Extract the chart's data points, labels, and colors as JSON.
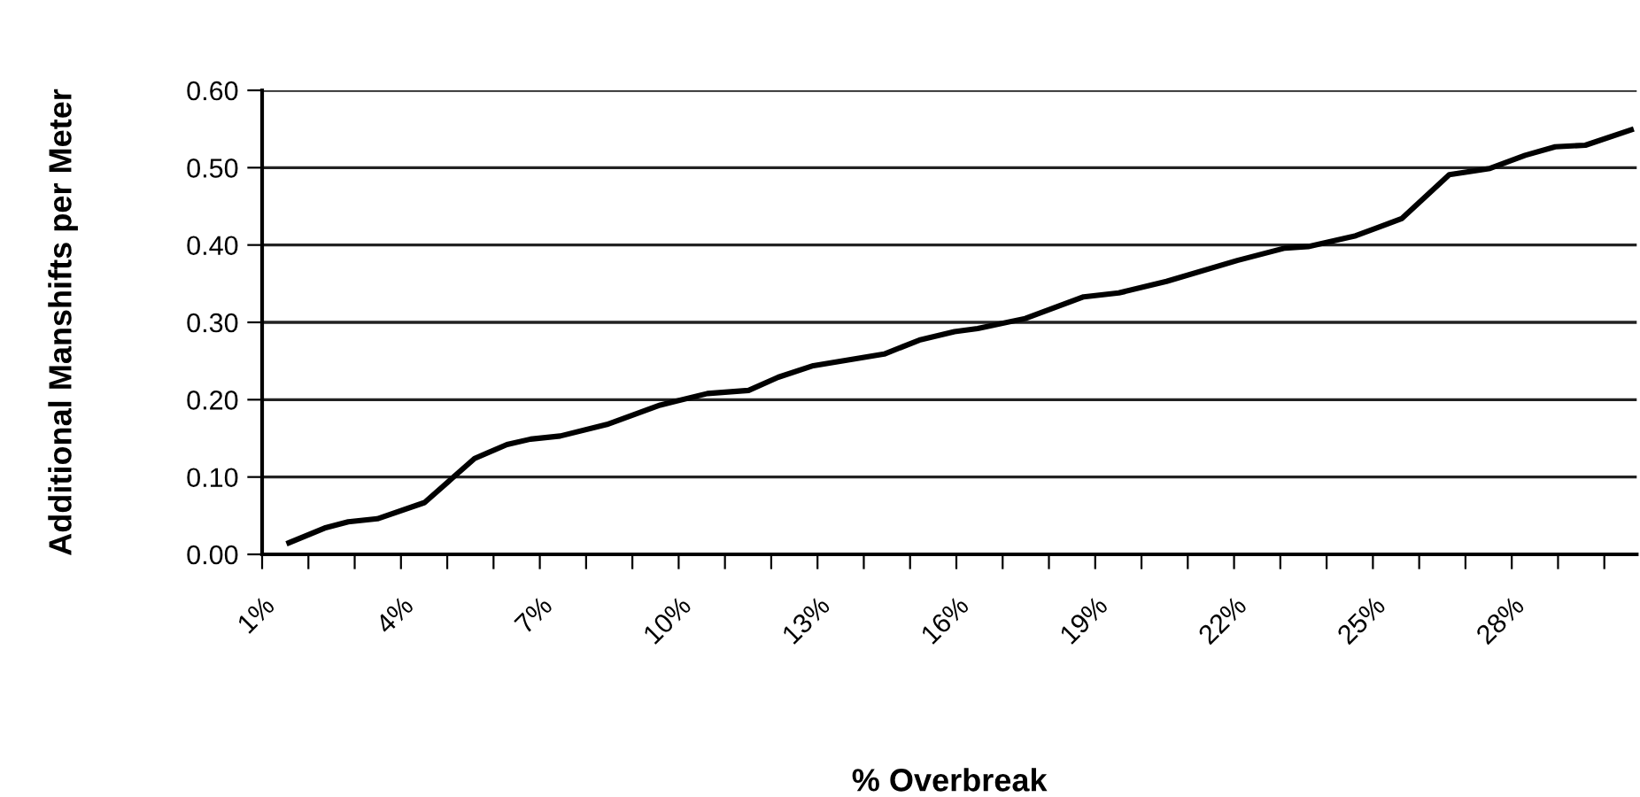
{
  "chart_data": {
    "type": "line",
    "xlabel": "% Overbreak",
    "ylabel": "Additional Manshifts per Meter",
    "x": [
      1.58,
      2.35,
      2.86,
      3.49,
      4.51,
      5.08,
      5.59,
      6.29,
      6.8,
      7.44,
      8.45,
      9.6,
      10.62,
      11.51,
      12.15,
      12.91,
      14.44,
      15.2,
      15.96,
      16.46,
      17.49,
      18.75,
      19.51,
      20.54,
      22.07,
      23.1,
      23.6,
      24.63,
      25.62,
      26.65,
      27.53,
      28.29,
      28.94,
      29.59,
      30.58
    ],
    "series": [
      {
        "color": "#000000",
        "values": [
          0.015,
          0.034,
          0.042,
          0.046,
          0.067,
          0.097,
          0.124,
          0.142,
          0.149,
          0.153,
          0.168,
          0.193,
          0.208,
          0.212,
          0.229,
          0.244,
          0.259,
          0.277,
          0.288,
          0.292,
          0.305,
          0.333,
          0.338,
          0.353,
          0.38,
          0.396,
          0.398,
          0.412,
          0.434,
          0.491,
          0.499,
          0.516,
          0.527,
          0.529,
          0.549
        ]
      }
    ],
    "xlim": [
      1,
      30.7
    ],
    "xticks": [
      {
        "value": 1,
        "label": "1%"
      },
      {
        "value": 2,
        "label": null
      },
      {
        "value": 3,
        "label": null
      },
      {
        "value": 4,
        "label": "4%"
      },
      {
        "value": 5,
        "label": null
      },
      {
        "value": 6,
        "label": null
      },
      {
        "value": 7,
        "label": "7%"
      },
      {
        "value": 8,
        "label": null
      },
      {
        "value": 9,
        "label": null
      },
      {
        "value": 10,
        "label": "10%"
      },
      {
        "value": 11,
        "label": null
      },
      {
        "value": 12,
        "label": null
      },
      {
        "value": 13,
        "label": "13%"
      },
      {
        "value": 14,
        "label": null
      },
      {
        "value": 15,
        "label": null
      },
      {
        "value": 16,
        "label": "16%"
      },
      {
        "value": 17,
        "label": null
      },
      {
        "value": 18,
        "label": null
      },
      {
        "value": 19,
        "label": "19%"
      },
      {
        "value": 20,
        "label": null
      },
      {
        "value": 21,
        "label": null
      },
      {
        "value": 22,
        "label": "22%"
      },
      {
        "value": 23,
        "label": null
      },
      {
        "value": 24,
        "label": null
      },
      {
        "value": 25,
        "label": "25%"
      },
      {
        "value": 26,
        "label": null
      },
      {
        "value": 27,
        "label": null
      },
      {
        "value": 28,
        "label": "28%"
      },
      {
        "value": 29,
        "label": null
      },
      {
        "value": 30,
        "label": null
      }
    ],
    "ylim": [
      0,
      0.6
    ],
    "yticks": [
      {
        "value": 0,
        "label": "0.00"
      },
      {
        "value": 0.1,
        "label": "0.10"
      },
      {
        "value": 0.2,
        "label": "0.20"
      },
      {
        "value": 0.3,
        "label": "0.30"
      },
      {
        "value": 0.4,
        "label": "0.40"
      },
      {
        "value": 0.5,
        "label": "0.50"
      },
      {
        "value": 0.6,
        "label": "0.60"
      }
    ],
    "grid": "y",
    "marker": "none",
    "line_style": "solid"
  }
}
